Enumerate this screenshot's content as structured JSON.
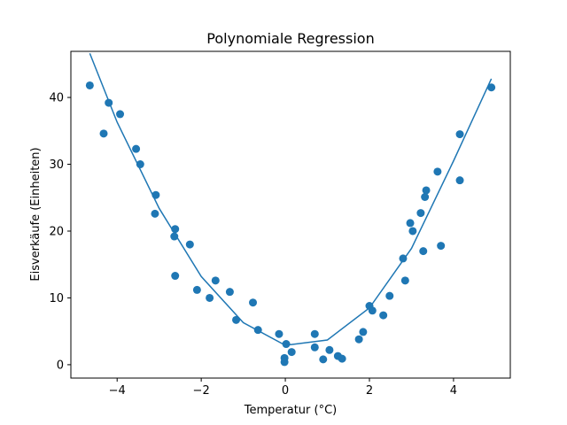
{
  "chart_data": {
    "type": "scatter",
    "title": "Polynomiale Regression",
    "xlabel": "Temperatur (°C)",
    "ylabel": "Eisverkäufe (Einheiten)",
    "xlim": [
      -5.1,
      5.35
    ],
    "ylim": [
      -2.0,
      46.9
    ],
    "x_ticks": [
      -4,
      -2,
      0,
      2,
      4
    ],
    "x_tick_labels": [
      "−4",
      "−2",
      "0",
      "2",
      "4"
    ],
    "y_ticks": [
      0,
      10,
      20,
      30,
      40
    ],
    "y_tick_labels": [
      "0",
      "10",
      "20",
      "30",
      "40"
    ],
    "grid": false,
    "colors": {
      "points": "#1f77b4",
      "fit_line": "#1f77b4"
    },
    "series": [
      {
        "type": "scatter",
        "points": [
          {
            "x": -4.65,
            "y": 41.8
          },
          {
            "x": -4.32,
            "y": 34.6
          },
          {
            "x": -4.2,
            "y": 39.2
          },
          {
            "x": -3.93,
            "y": 37.5
          },
          {
            "x": -3.55,
            "y": 32.3
          },
          {
            "x": -3.45,
            "y": 30.0
          },
          {
            "x": -3.08,
            "y": 25.4
          },
          {
            "x": -3.1,
            "y": 22.6
          },
          {
            "x": -2.62,
            "y": 20.3
          },
          {
            "x": -2.64,
            "y": 19.2
          },
          {
            "x": -2.62,
            "y": 13.3
          },
          {
            "x": -2.27,
            "y": 18.0
          },
          {
            "x": -2.1,
            "y": 11.2
          },
          {
            "x": -1.8,
            "y": 10.0
          },
          {
            "x": -1.66,
            "y": 12.6
          },
          {
            "x": -1.32,
            "y": 10.9
          },
          {
            "x": -1.17,
            "y": 6.7
          },
          {
            "x": -0.77,
            "y": 9.3
          },
          {
            "x": -0.65,
            "y": 5.2
          },
          {
            "x": -0.15,
            "y": 4.6
          },
          {
            "x": -0.02,
            "y": 0.4
          },
          {
            "x": -0.02,
            "y": 1.0
          },
          {
            "x": 0.02,
            "y": 3.1
          },
          {
            "x": 0.15,
            "y": 1.9
          },
          {
            "x": 0.7,
            "y": 4.6
          },
          {
            "x": 0.7,
            "y": 2.6
          },
          {
            "x": 0.9,
            "y": 0.8
          },
          {
            "x": 1.05,
            "y": 2.2
          },
          {
            "x": 1.25,
            "y": 1.3
          },
          {
            "x": 1.35,
            "y": 0.9
          },
          {
            "x": 1.75,
            "y": 3.8
          },
          {
            "x": 1.85,
            "y": 4.9
          },
          {
            "x": 2.0,
            "y": 8.8
          },
          {
            "x": 2.07,
            "y": 8.1
          },
          {
            "x": 2.33,
            "y": 7.4
          },
          {
            "x": 2.48,
            "y": 10.3
          },
          {
            "x": 2.8,
            "y": 15.9
          },
          {
            "x": 2.85,
            "y": 12.6
          },
          {
            "x": 2.97,
            "y": 21.2
          },
          {
            "x": 3.03,
            "y": 20.0
          },
          {
            "x": 3.22,
            "y": 22.7
          },
          {
            "x": 3.28,
            "y": 17.0
          },
          {
            "x": 3.32,
            "y": 25.1
          },
          {
            "x": 3.35,
            "y": 26.1
          },
          {
            "x": 3.62,
            "y": 28.9
          },
          {
            "x": 3.7,
            "y": 17.8
          },
          {
            "x": 4.15,
            "y": 34.5
          },
          {
            "x": 4.15,
            "y": 27.6
          },
          {
            "x": 4.9,
            "y": 41.5
          }
        ]
      },
      {
        "type": "line",
        "x": [
          -4.65,
          -4.0,
          -3.0,
          -2.0,
          -1.0,
          0.0,
          1.0,
          2.0,
          3.0,
          4.0,
          4.9
        ],
        "y": [
          46.6,
          36.3,
          23.4,
          13.2,
          6.3,
          2.9,
          3.7,
          8.5,
          17.4,
          30.5,
          42.8
        ]
      }
    ]
  }
}
